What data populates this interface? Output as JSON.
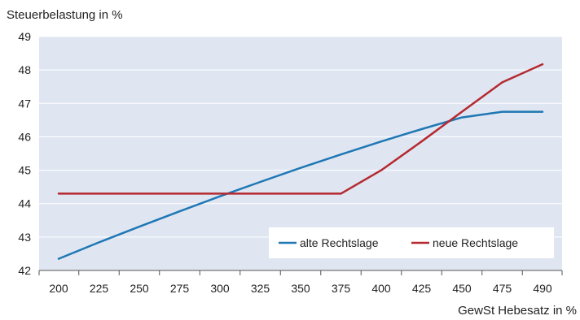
{
  "chart_data": {
    "type": "line",
    "ylabel": "Steuerbelastung in %",
    "xlabel": "GewSt Hebesatz in %",
    "categories": [
      "200",
      "225",
      "250",
      "275",
      "300",
      "325",
      "350",
      "375",
      "400",
      "425",
      "450",
      "475",
      "490"
    ],
    "ylim": [
      42,
      49
    ],
    "yticks": [
      42,
      43,
      44,
      45,
      46,
      47,
      48,
      49
    ],
    "grid": true,
    "legend_position": "bottom-right",
    "series": [
      {
        "name": "alte Rechtslage",
        "color": "#1f77b4",
        "values": [
          42.35,
          42.84,
          43.31,
          43.77,
          44.22,
          44.65,
          45.07,
          45.47,
          45.86,
          46.23,
          46.58,
          46.75,
          46.75
        ]
      },
      {
        "name": "neue Rechtslage",
        "color": "#b5292f",
        "values": [
          44.3,
          44.3,
          44.3,
          44.3,
          44.3,
          44.3,
          44.3,
          44.3,
          45.0,
          45.86,
          46.75,
          47.63,
          48.17
        ]
      }
    ]
  }
}
